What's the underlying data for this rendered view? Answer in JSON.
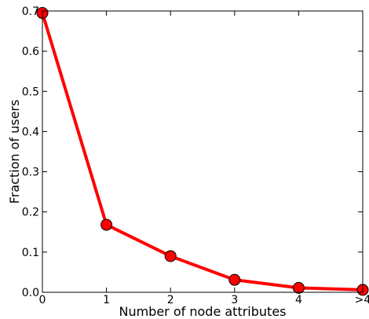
{
  "chart_data": {
    "type": "line",
    "title": "",
    "xlabel": "Number of node attributes",
    "ylabel": "Fraction of users",
    "categories": [
      "0",
      "1",
      "2",
      "3",
      "4",
      ">4"
    ],
    "series": [
      {
        "values": [
          0.695,
          0.168,
          0.09,
          0.031,
          0.011,
          0.006
        ],
        "color": "#ff0000",
        "marker": "circle"
      }
    ],
    "ylim": [
      0.0,
      0.7
    ],
    "yticks": [
      "0.0",
      "0.1",
      "0.2",
      "0.3",
      "0.4",
      "0.5",
      "0.6",
      "0.7"
    ],
    "grid": false,
    "legend": "none"
  }
}
